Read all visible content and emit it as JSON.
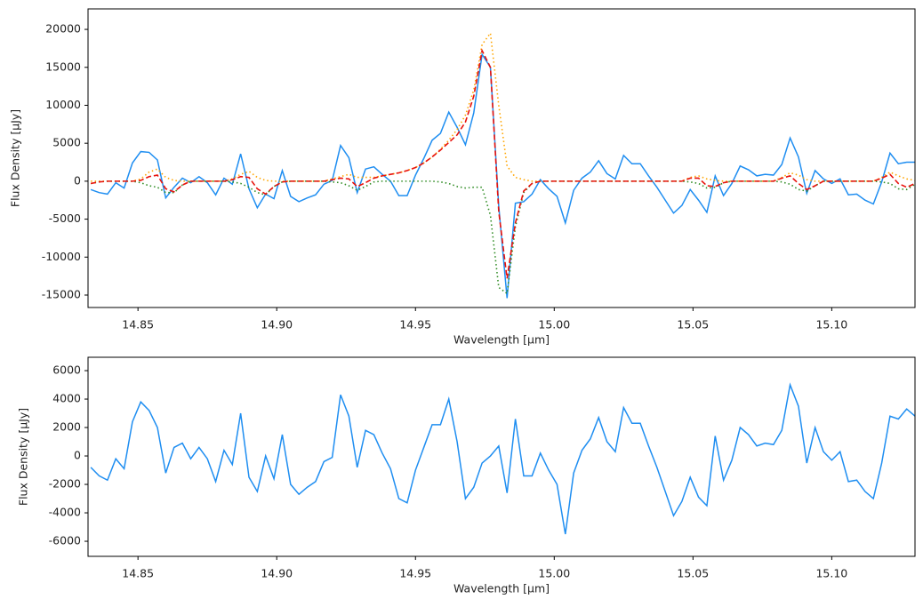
{
  "chart_data": [
    {
      "type": "line",
      "xlabel": "Wavelength [μm]",
      "ylabel": "Flux Density [μJy]",
      "xlim": [
        14.832,
        15.13
      ],
      "ylim": [
        -16640,
        22700
      ],
      "xticks": [
        14.85,
        {
          "value": 14.9,
          "label": "14.90"
        },
        14.95,
        {
          "value": 15.0,
          "label": "15.00"
        },
        15.05,
        {
          "value": 15.1,
          "label": "15.10"
        }
      ],
      "yticks": [
        -15000,
        -10000,
        -5000,
        0,
        5000,
        10000,
        15000,
        20000
      ],
      "x": [
        14.833,
        14.836,
        14.839,
        14.842,
        14.845,
        14.848,
        14.851,
        14.854,
        14.857,
        14.86,
        14.863,
        14.866,
        14.869,
        14.872,
        14.875,
        14.878,
        14.881,
        14.884,
        14.887,
        14.89,
        14.893,
        14.896,
        14.899,
        14.902,
        14.905,
        14.908,
        14.911,
        14.914,
        14.917,
        14.92,
        14.923,
        14.926,
        14.929,
        14.932,
        14.935,
        14.938,
        14.941,
        14.944,
        14.947,
        14.95,
        14.953,
        14.956,
        14.959,
        14.962,
        14.965,
        14.968,
        14.971,
        14.974,
        14.977,
        14.98,
        14.983,
        14.986,
        14.989,
        14.992,
        14.995,
        14.998,
        15.001,
        15.004,
        15.007,
        15.01,
        15.013,
        15.016,
        15.019,
        15.022,
        15.025,
        15.028,
        15.031,
        15.034,
        15.037,
        15.04,
        15.043,
        15.046,
        15.049,
        15.052,
        15.055,
        15.058,
        15.061,
        15.064,
        15.067,
        15.07,
        15.073,
        15.076,
        15.079,
        15.082,
        15.085,
        15.088,
        15.091,
        15.094,
        15.097,
        15.1,
        15.103,
        15.106,
        15.109,
        15.112,
        15.115,
        15.118,
        15.121,
        15.124,
        15.127,
        15.13
      ],
      "series": [
        {
          "color": "#1f8ef1",
          "style": "solid",
          "values": [
            -1100,
            -1500,
            -1700,
            -200,
            -900,
            2400,
            3900,
            3800,
            2800,
            -2200,
            -800,
            400,
            -200,
            600,
            -200,
            -1800,
            400,
            -400,
            3600,
            -1000,
            -3500,
            -1700,
            -2300,
            1400,
            -2000,
            -2700,
            -2200,
            -1800,
            -400,
            100,
            4700,
            3100,
            -1500,
            1600,
            1900,
            900,
            0,
            -1900,
            -1900,
            800,
            3000,
            5400,
            6300,
            9100,
            7100,
            4800,
            9000,
            16700,
            15000,
            -3300,
            -15400,
            -2900,
            -2700,
            -1700,
            200,
            -1000,
            -2000,
            -5500,
            -1200,
            400,
            1200,
            2700,
            1000,
            300,
            3400,
            2300,
            2300,
            700,
            -800,
            -2500,
            -4200,
            -3200,
            -1100,
            -2500,
            -4100,
            700,
            -1900,
            -300,
            2000,
            1500,
            700,
            900,
            800,
            2200,
            5700,
            3200,
            -1600,
            1400,
            300,
            -300,
            300,
            -1800,
            -1700,
            -2500,
            -3000,
            -100,
            3700,
            2300,
            2500,
            2500
          ]
        },
        {
          "color": "#ffa500",
          "style": "dotted",
          "values": [
            0,
            0,
            0,
            0,
            0,
            0,
            300,
            1200,
            1600,
            500,
            100,
            0,
            0,
            0,
            0,
            0,
            0,
            300,
            900,
            1300,
            500,
            100,
            0,
            0,
            0,
            0,
            0,
            0,
            0,
            300,
            600,
            900,
            500,
            500,
            500,
            700,
            900,
            1100,
            1400,
            1800,
            2400,
            3200,
            4200,
            5400,
            6800,
            8700,
            12000,
            18000,
            19500,
            10000,
            2000,
            500,
            200,
            0,
            0,
            0,
            0,
            0,
            0,
            0,
            0,
            0,
            0,
            0,
            0,
            0,
            0,
            0,
            0,
            0,
            0,
            0,
            500,
            700,
            300,
            100,
            0,
            0,
            0,
            0,
            0,
            0,
            0,
            500,
            1100,
            800,
            200,
            0,
            0,
            0,
            0,
            0,
            0,
            0,
            0,
            500,
            1200,
            700,
            300,
            100
          ]
        },
        {
          "color": "#2e8b22",
          "style": "dotted",
          "values": [
            -300,
            -100,
            0,
            0,
            0,
            0,
            -200,
            -600,
            -800,
            -1500,
            -1500,
            -500,
            0,
            0,
            0,
            0,
            0,
            -100,
            -300,
            -800,
            -1500,
            -1800,
            -700,
            -100,
            0,
            0,
            0,
            0,
            0,
            -100,
            -200,
            -600,
            -1200,
            -700,
            -100,
            0,
            0,
            0,
            0,
            0,
            0,
            0,
            -100,
            -300,
            -700,
            -900,
            -800,
            -800,
            -4500,
            -14000,
            -14800,
            -6000,
            -1500,
            -300,
            0,
            0,
            0,
            0,
            0,
            0,
            0,
            0,
            0,
            0,
            0,
            0,
            0,
            0,
            0,
            0,
            0,
            0,
            -100,
            -300,
            -900,
            -800,
            -200,
            0,
            0,
            0,
            0,
            0,
            0,
            -100,
            -400,
            -1100,
            -1300,
            -600,
            0,
            0,
            0,
            0,
            0,
            0,
            0,
            -100,
            -300,
            -1000,
            -1100,
            -400
          ]
        },
        {
          "color": "#e8120c",
          "style": "dashed",
          "values": [
            -300,
            -100,
            0,
            0,
            0,
            0,
            100,
            600,
            800,
            -1000,
            -1400,
            -500,
            0,
            0,
            0,
            0,
            0,
            200,
            600,
            500,
            -1000,
            -1700,
            -700,
            -100,
            0,
            0,
            0,
            0,
            0,
            200,
            400,
            300,
            -700,
            -200,
            400,
            700,
            900,
            1100,
            1400,
            1800,
            2400,
            3200,
            4100,
            5100,
            6100,
            7800,
            11200,
            17200,
            15000,
            -4000,
            -12800,
            -5500,
            -1300,
            -300,
            0,
            0,
            0,
            0,
            0,
            0,
            0,
            0,
            0,
            0,
            0,
            0,
            0,
            0,
            0,
            0,
            0,
            0,
            400,
            400,
            -600,
            -700,
            -200,
            0,
            0,
            0,
            0,
            0,
            0,
            400,
            700,
            -300,
            -1100,
            -600,
            0,
            0,
            0,
            0,
            0,
            0,
            0,
            400,
            900,
            -300,
            -800,
            -300
          ]
        }
      ]
    },
    {
      "type": "line",
      "xlabel": "Wavelength [μm]",
      "ylabel": "Flux Density [μJy]",
      "xlim": [
        14.832,
        15.13
      ],
      "ylim": [
        -7060,
        6940
      ],
      "xticks": [
        14.85,
        {
          "value": 14.9,
          "label": "14.90"
        },
        14.95,
        {
          "value": 15.0,
          "label": "15.00"
        },
        15.05,
        {
          "value": 15.1,
          "label": "15.10"
        }
      ],
      "yticks": [
        -6000,
        -4000,
        -2000,
        0,
        2000,
        4000,
        6000
      ],
      "x": [
        14.833,
        14.836,
        14.839,
        14.842,
        14.845,
        14.848,
        14.851,
        14.854,
        14.857,
        14.86,
        14.863,
        14.866,
        14.869,
        14.872,
        14.875,
        14.878,
        14.881,
        14.884,
        14.887,
        14.89,
        14.893,
        14.896,
        14.899,
        14.902,
        14.905,
        14.908,
        14.911,
        14.914,
        14.917,
        14.92,
        14.923,
        14.926,
        14.929,
        14.932,
        14.935,
        14.938,
        14.941,
        14.944,
        14.947,
        14.95,
        14.953,
        14.956,
        14.959,
        14.962,
        14.965,
        14.968,
        14.971,
        14.974,
        14.977,
        14.98,
        14.983,
        14.986,
        14.989,
        14.992,
        14.995,
        14.998,
        15.001,
        15.004,
        15.007,
        15.01,
        15.013,
        15.016,
        15.019,
        15.022,
        15.025,
        15.028,
        15.031,
        15.034,
        15.037,
        15.04,
        15.043,
        15.046,
        15.049,
        15.052,
        15.055,
        15.058,
        15.061,
        15.064,
        15.067,
        15.07,
        15.073,
        15.076,
        15.079,
        15.082,
        15.085,
        15.088,
        15.091,
        15.094,
        15.097,
        15.1,
        15.103,
        15.106,
        15.109,
        15.112,
        15.115,
        15.118,
        15.121,
        15.124,
        15.127,
        15.13
      ],
      "series": [
        {
          "color": "#1f8ef1",
          "style": "solid",
          "values": [
            -800,
            -1400,
            -1700,
            -200,
            -900,
            2400,
            3800,
            3200,
            2000,
            -1200,
            600,
            900,
            -200,
            600,
            -200,
            -1800,
            400,
            -600,
            3000,
            -1500,
            -2500,
            0,
            -1600,
            1500,
            -2000,
            -2700,
            -2200,
            -1800,
            -400,
            -100,
            4300,
            2800,
            -800,
            1800,
            1500,
            200,
            -900,
            -3000,
            -3300,
            -1000,
            600,
            2200,
            2200,
            4000,
            1000,
            -3000,
            -2200,
            -500,
            0,
            700,
            -2600,
            2600,
            -1400,
            -1400,
            200,
            -1000,
            -2000,
            -5500,
            -1200,
            400,
            1200,
            2700,
            1000,
            300,
            3400,
            2300,
            2300,
            700,
            -800,
            -2500,
            -4200,
            -3200,
            -1500,
            -2900,
            -3500,
            1400,
            -1700,
            -300,
            2000,
            1500,
            700,
            900,
            800,
            1800,
            5000,
            3500,
            -500,
            2000,
            300,
            -300,
            300,
            -1800,
            -1700,
            -2500,
            -3000,
            -500,
            2800,
            2600,
            3300,
            2800
          ]
        }
      ]
    }
  ]
}
